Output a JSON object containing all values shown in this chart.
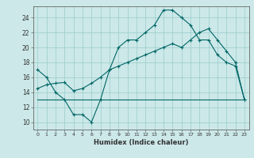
{
  "xlabel": "Humidex (Indice chaleur)",
  "bg_color": "#cce8e8",
  "grid_color": "#99cccc",
  "line_color": "#006666",
  "xlim": [
    -0.5,
    23.5
  ],
  "ylim": [
    9.0,
    25.5
  ],
  "xticks": [
    0,
    1,
    2,
    3,
    4,
    5,
    6,
    7,
    8,
    9,
    10,
    11,
    12,
    13,
    14,
    15,
    16,
    17,
    18,
    19,
    20,
    21,
    22,
    23
  ],
  "yticks": [
    10,
    12,
    14,
    16,
    18,
    20,
    22,
    24
  ],
  "line1_x": [
    0,
    1,
    2,
    3,
    4,
    5,
    6,
    7,
    8,
    9,
    10,
    11,
    12,
    13,
    14,
    15,
    16,
    17,
    18,
    19,
    20,
    21,
    22,
    23
  ],
  "line1_y": [
    17,
    16,
    14,
    13,
    11,
    11,
    10,
    13,
    17,
    20,
    21,
    21,
    22,
    23,
    25,
    25,
    24,
    23,
    21,
    21,
    19,
    18,
    17.5,
    13
  ],
  "line2_x": [
    0,
    1,
    2,
    3,
    4,
    5,
    6,
    7,
    8,
    9,
    10,
    11,
    12,
    13,
    14,
    15,
    16,
    17,
    18,
    19,
    20,
    21,
    22,
    23
  ],
  "line2_y": [
    14.5,
    15,
    15.2,
    15.3,
    14.2,
    14.5,
    15.2,
    16,
    17,
    17.5,
    18,
    18.5,
    19,
    19.5,
    20,
    20.5,
    20,
    21,
    22,
    22.5,
    21,
    19.5,
    18,
    13
  ],
  "line3_x": [
    0,
    23
  ],
  "line3_y": [
    13,
    13
  ]
}
